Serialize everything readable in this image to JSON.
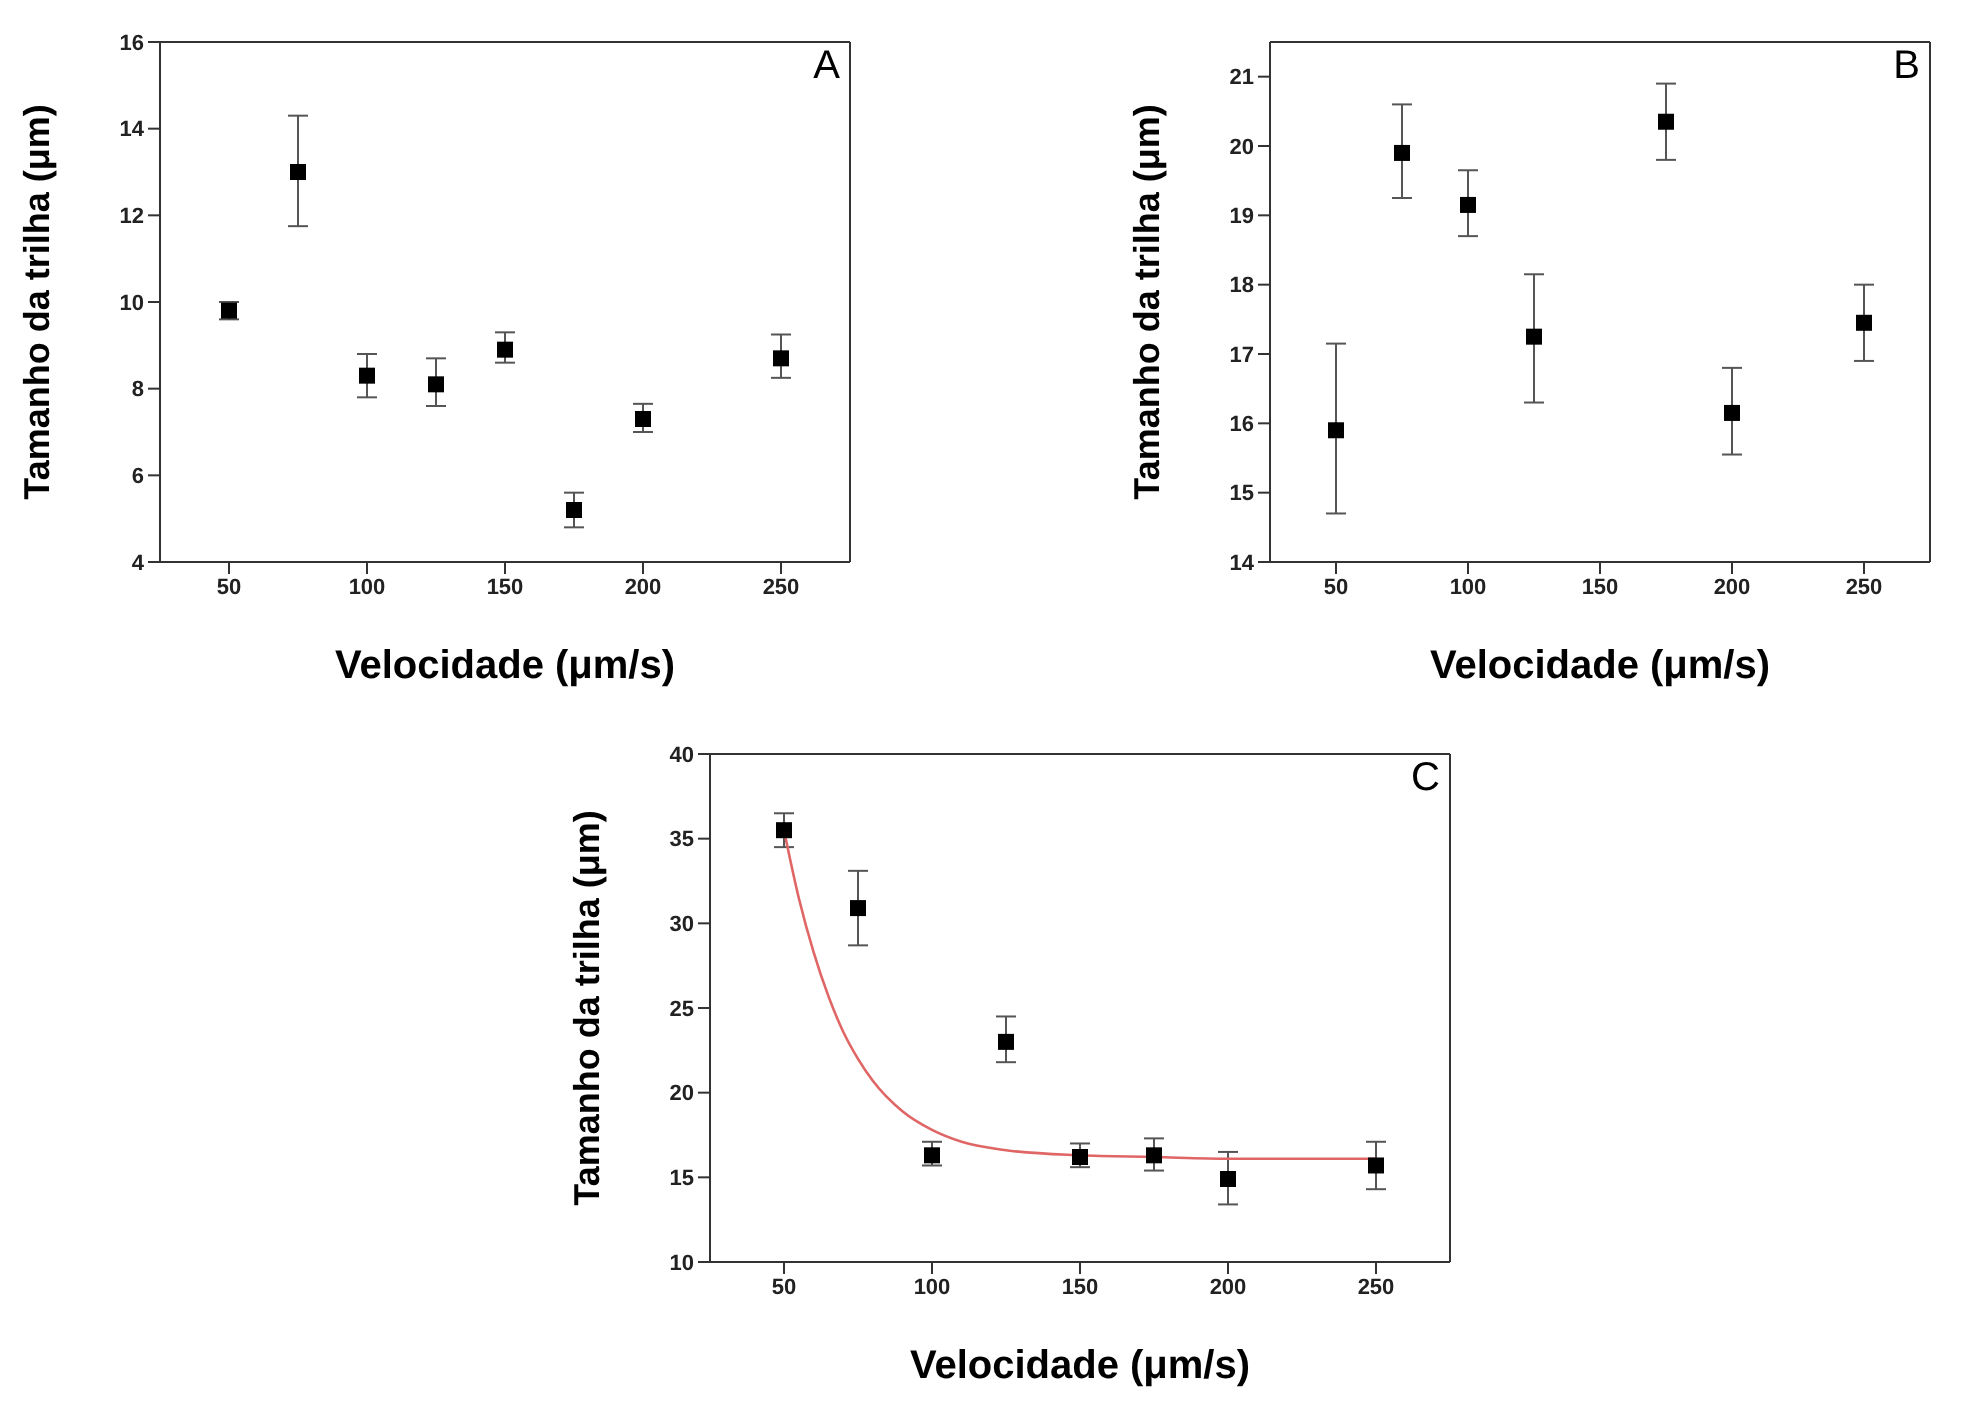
{
  "chart_data": [
    {
      "type": "scatter",
      "annotations": [
        "A"
      ],
      "xlabel": "Velocidade (μm/s)",
      "ylabel": "Tamanho da trilha (μm)",
      "x": [
        50,
        75,
        100,
        125,
        150,
        175,
        200,
        250
      ],
      "xlim": [
        25,
        275
      ],
      "xticks": [
        50,
        100,
        150,
        200,
        250
      ],
      "ylim": [
        4,
        16
      ],
      "yticks": [
        4,
        6,
        8,
        10,
        12,
        14,
        16
      ],
      "marker": "square",
      "series": [
        {
          "color": "#000000",
          "values": [
            9.8,
            13.0,
            8.3,
            8.1,
            8.9,
            5.2,
            7.3,
            8.7
          ],
          "errors": [
            [
              9.6,
              10.0
            ],
            [
              11.75,
              14.3
            ],
            [
              7.8,
              8.8
            ],
            [
              7.6,
              8.7
            ],
            [
              8.6,
              9.3
            ],
            [
              4.8,
              5.6
            ],
            [
              7.0,
              7.65
            ],
            [
              8.25,
              9.25
            ]
          ]
        }
      ]
    },
    {
      "type": "scatter",
      "annotations": [
        "B"
      ],
      "xlabel": "Velocidade (μm/s)",
      "ylabel": "Tamanho da trilha (μm)",
      "x": [
        50,
        75,
        100,
        125,
        175,
        200,
        250
      ],
      "xlim": [
        25,
        275
      ],
      "xticks": [
        50,
        100,
        150,
        200,
        250
      ],
      "ylim": [
        14,
        21.5
      ],
      "yticks": [
        14,
        15,
        16,
        17,
        18,
        19,
        20,
        21
      ],
      "marker": "square",
      "series": [
        {
          "color": "#000000",
          "values": [
            15.9,
            19.9,
            19.15,
            17.25,
            20.35,
            16.15,
            17.45
          ],
          "errors": [
            [
              14.7,
              17.15
            ],
            [
              19.25,
              20.6
            ],
            [
              18.7,
              19.65
            ],
            [
              16.3,
              18.15
            ],
            [
              19.8,
              20.9
            ],
            [
              15.55,
              16.8
            ],
            [
              16.9,
              18.0
            ]
          ]
        }
      ]
    },
    {
      "type": "scatter",
      "annotations": [
        "C"
      ],
      "xlabel": "Velocidade (μm/s)",
      "ylabel": "Tamanho da trilha (μm)",
      "x": [
        50,
        75,
        100,
        125,
        150,
        175,
        200,
        250
      ],
      "xlim": [
        25,
        275
      ],
      "xticks": [
        50,
        100,
        150,
        200,
        250
      ],
      "ylim": [
        10,
        40
      ],
      "yticks": [
        10,
        15,
        20,
        25,
        30,
        35,
        40
      ],
      "marker": "square",
      "series": [
        {
          "color": "#000000",
          "values": [
            35.5,
            30.9,
            16.3,
            23.0,
            16.2,
            16.3,
            14.9,
            15.7
          ],
          "errors": [
            [
              34.5,
              36.5
            ],
            [
              28.7,
              33.1
            ],
            [
              15.7,
              17.1
            ],
            [
              21.8,
              24.5
            ],
            [
              15.6,
              17.0
            ],
            [
              15.4,
              17.3
            ],
            [
              13.4,
              16.5
            ],
            [
              14.3,
              17.1
            ]
          ]
        },
        {
          "type": "line",
          "color": "#e06666",
          "marker": "none",
          "x": [
            50,
            55,
            60,
            65,
            70,
            75,
            80,
            90,
            100,
            110,
            125,
            150,
            175,
            200,
            250
          ],
          "values": [
            35.5,
            31.5,
            28.3,
            25.7,
            23.6,
            22.0,
            20.7,
            18.9,
            17.8,
            17.1,
            16.6,
            16.3,
            16.2,
            16.1,
            16.1
          ]
        }
      ]
    }
  ]
}
